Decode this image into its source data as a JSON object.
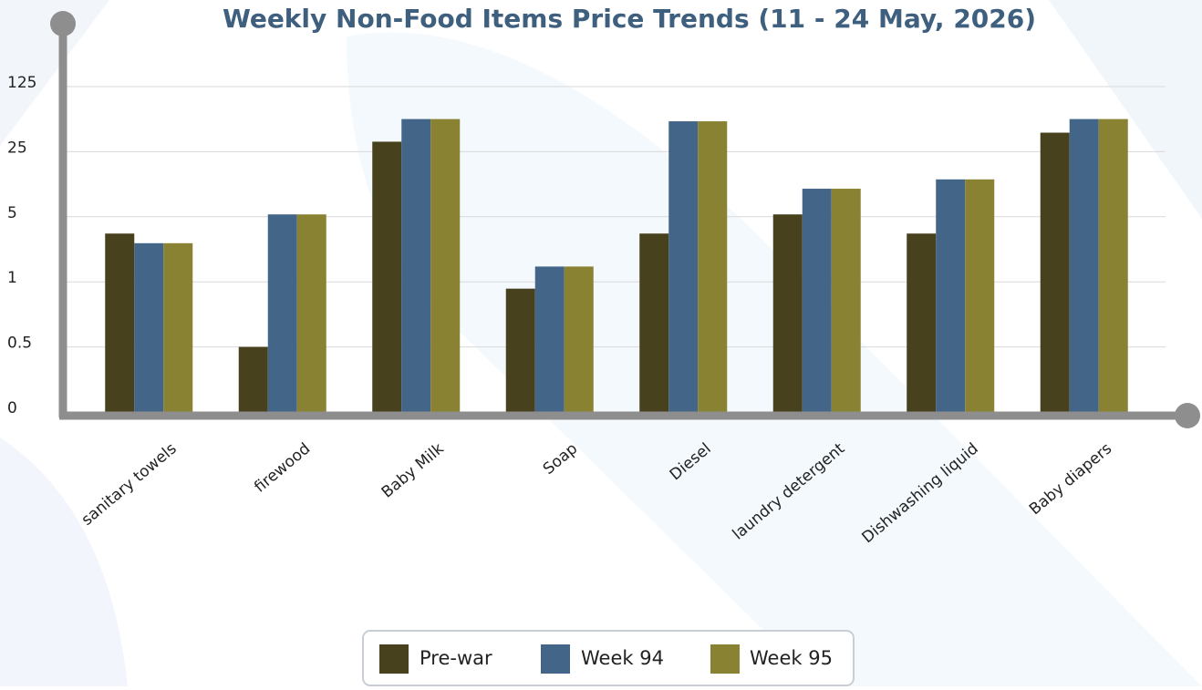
{
  "chart_data": {
    "type": "bar",
    "title": "Weekly Non-Food Items Price Trends (11 - 24 May, 2026)",
    "categories": [
      "sanitary towels",
      "firewood",
      "Baby Milk",
      "Soap",
      "Diesel",
      "laundry detergent",
      "Dishwashing liquid",
      "Baby diapers"
    ],
    "series": [
      {
        "name": "Pre-war",
        "color": "#47411e",
        "values": [
          3.3,
          0.5,
          32,
          0.93,
          3.3,
          5.3,
          3.3,
          40
        ]
      },
      {
        "name": "Week 94",
        "color": "#426588",
        "values": [
          2.6,
          5.3,
          56,
          1.46,
          53,
          10,
          12.6,
          56
        ]
      },
      {
        "name": "Week 95",
        "color": "#8a8233",
        "values": [
          2.6,
          5.3,
          56,
          1.46,
          53,
          10,
          12.6,
          56
        ]
      }
    ],
    "ylim": [
      0,
      125
    ],
    "yticks": [
      0,
      0.5,
      1,
      5,
      25,
      125
    ],
    "scale": "log",
    "grid": true
  }
}
